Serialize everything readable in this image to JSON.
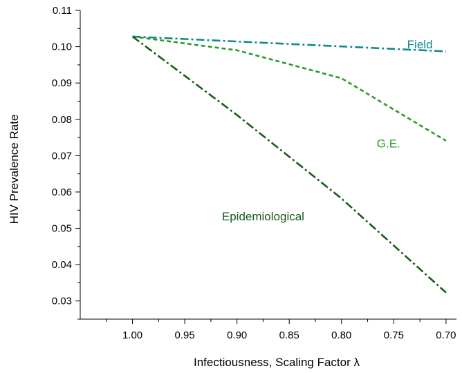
{
  "chart_data": {
    "type": "line",
    "xlabel": "Infectiousness, Scaling Factor λ",
    "ylabel": "HIV Prevalence Rate",
    "xlim": [
      1.05,
      0.69
    ],
    "ylim": [
      0.025,
      0.11
    ],
    "x_reversed": true,
    "grid": false,
    "x_ticks": [
      1.0,
      0.95,
      0.9,
      0.85,
      0.8,
      0.75,
      0.7
    ],
    "x_tick_labels": [
      "1.00",
      "0.95",
      "0.90",
      "0.85",
      "0.80",
      "0.75",
      "0.70"
    ],
    "y_ticks": [
      0.03,
      0.04,
      0.05,
      0.06,
      0.07,
      0.08,
      0.09,
      0.1,
      0.11
    ],
    "y_tick_labels": [
      "0.03",
      "0.04",
      "0.05",
      "0.06",
      "0.07",
      "0.08",
      "0.09",
      "0.10",
      "0.11"
    ],
    "series": [
      {
        "name": "Field",
        "color": "#0e8a8a",
        "dash": "dash-dot",
        "x": [
          1.0,
          0.7
        ],
        "y": [
          0.1028,
          0.0987
        ],
        "label_at": [
          0.725,
          0.0995
        ]
      },
      {
        "name": "G.E.",
        "color": "#2a9a2a",
        "dash": "dashed",
        "x": [
          1.0,
          0.9,
          0.8,
          0.7
        ],
        "y": [
          0.1028,
          0.099,
          0.0913,
          0.0741
        ],
        "label_at": [
          0.755,
          0.0723
        ]
      },
      {
        "name": "Epidemiological",
        "color": "#1a5a1a",
        "dash": "dash-dot",
        "x": [
          1.0,
          0.9,
          0.8,
          0.7
        ],
        "y": [
          0.1028,
          0.0812,
          0.0582,
          0.0323
        ],
        "label_at": [
          0.875,
          0.0522
        ]
      }
    ]
  }
}
